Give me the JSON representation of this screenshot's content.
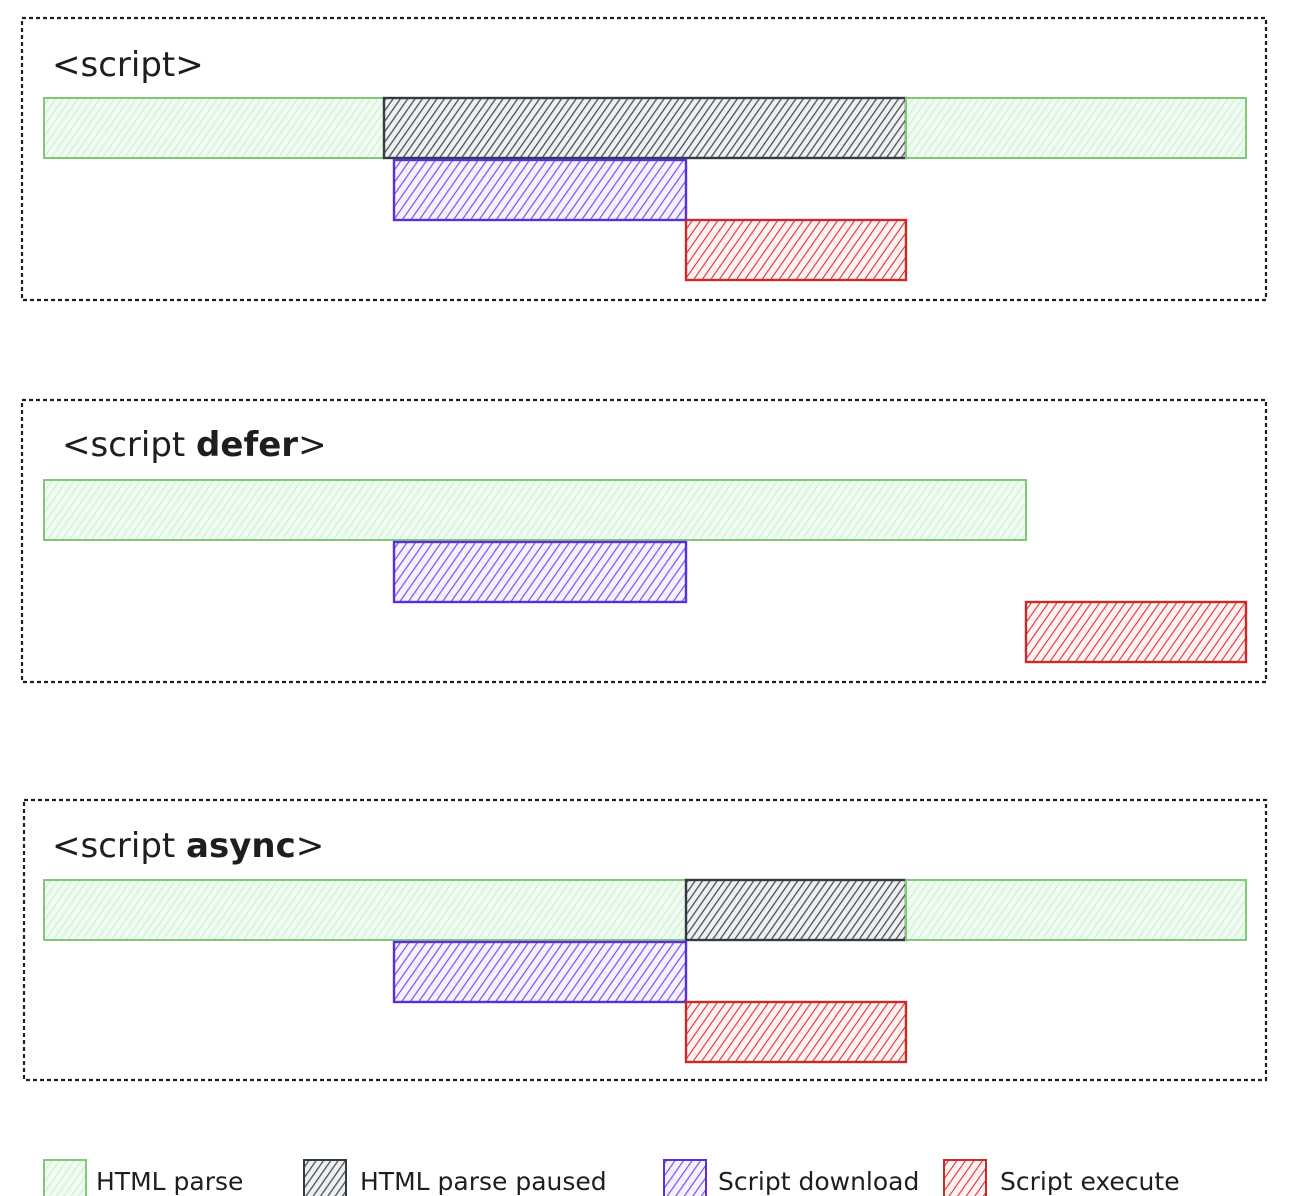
{
  "colors": {
    "html_parse": "#b2f2bb",
    "html_parse_stroke": "#82c878",
    "html_parse_paused": "#495057",
    "html_parse_paused_stroke": "#343a40",
    "script_download": "#7950f2",
    "script_download_stroke": "#5a2fd8",
    "script_execute": "#e03131",
    "script_execute_stroke": "#c92a2a"
  },
  "panels": [
    {
      "title_prefix": "<script",
      "title_keyword": "",
      "title_suffix": ">",
      "bars": [
        {
          "kind": "html_parse",
          "start": 0,
          "end": 340,
          "row": 0
        },
        {
          "kind": "html_parse_paused",
          "start": 340,
          "end": 862,
          "row": 0
        },
        {
          "kind": "html_parse",
          "start": 862,
          "end": 1202,
          "row": 0
        },
        {
          "kind": "script_download",
          "start": 350,
          "end": 642,
          "row": 1
        },
        {
          "kind": "script_execute",
          "start": 642,
          "end": 862,
          "row": 2
        }
      ]
    },
    {
      "title_prefix": "<script ",
      "title_keyword": "defer",
      "title_suffix": ">",
      "bars": [
        {
          "kind": "html_parse",
          "start": 0,
          "end": 982,
          "row": 0
        },
        {
          "kind": "script_download",
          "start": 350,
          "end": 642,
          "row": 1
        },
        {
          "kind": "script_execute",
          "start": 982,
          "end": 1202,
          "row": 2
        }
      ]
    },
    {
      "title_prefix": "<script ",
      "title_keyword": "async",
      "title_suffix": ">",
      "bars": [
        {
          "kind": "html_parse",
          "start": 0,
          "end": 642,
          "row": 0
        },
        {
          "kind": "html_parse_paused",
          "start": 642,
          "end": 862,
          "row": 0
        },
        {
          "kind": "html_parse",
          "start": 862,
          "end": 1202,
          "row": 0
        },
        {
          "kind": "script_download",
          "start": 350,
          "end": 642,
          "row": 1
        },
        {
          "kind": "script_execute",
          "start": 642,
          "end": 862,
          "row": 2
        }
      ]
    }
  ],
  "legend": [
    {
      "kind": "html_parse",
      "label": "HTML parse"
    },
    {
      "kind": "html_parse_paused",
      "label": "HTML parse paused"
    },
    {
      "kind": "script_download",
      "label": "Script download"
    },
    {
      "kind": "script_execute",
      "label": "Script execute"
    }
  ]
}
